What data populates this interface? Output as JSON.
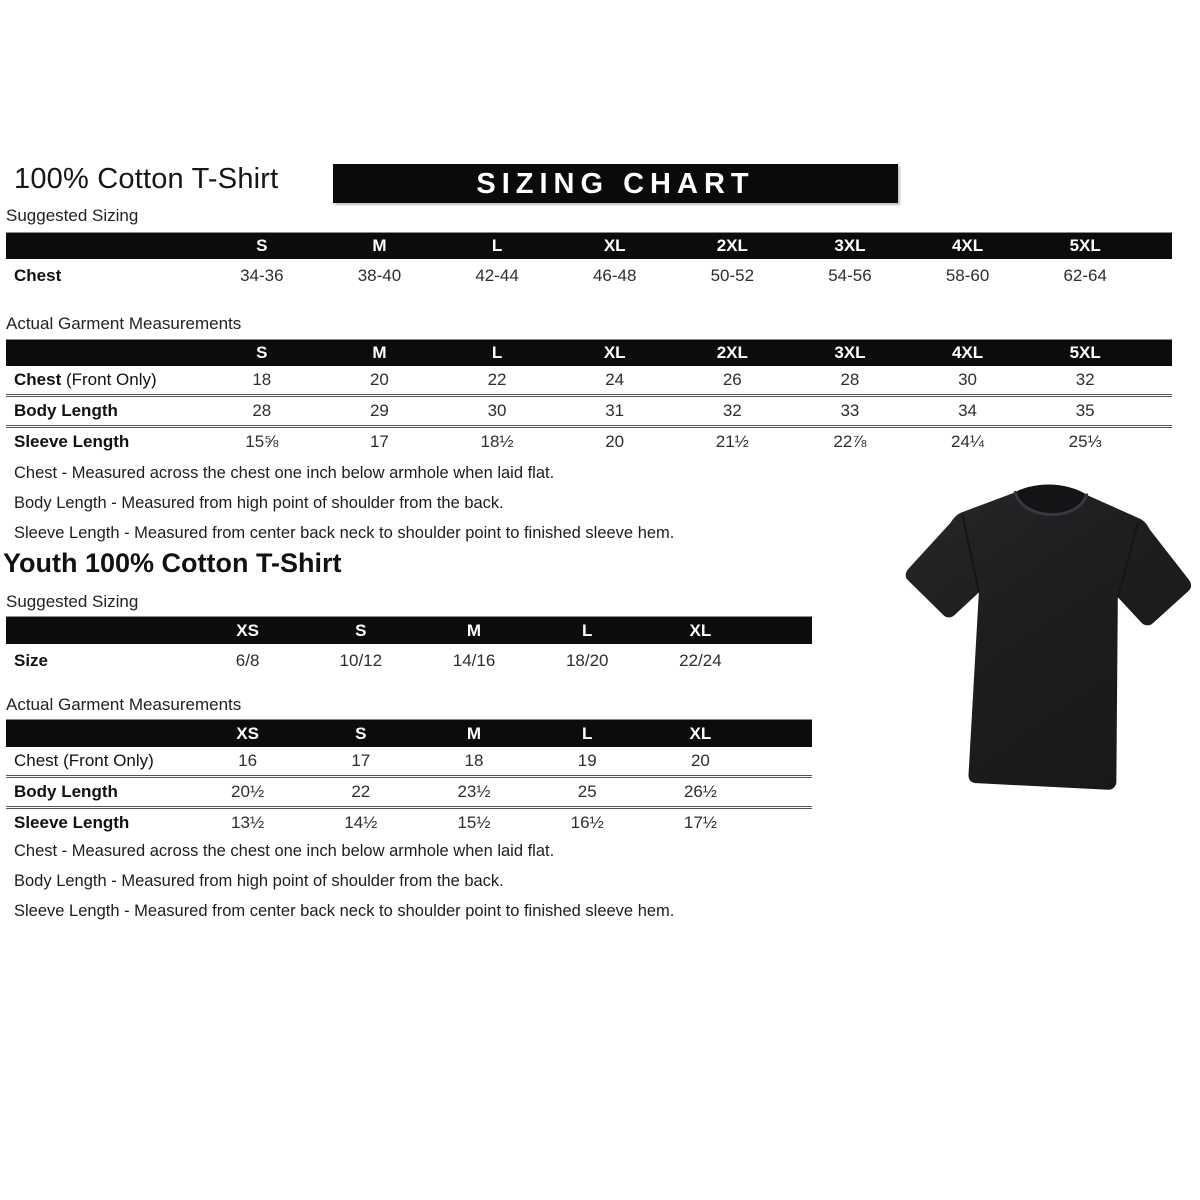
{
  "header": {
    "title": "100% Cotton T-Shirt",
    "banner": "SIZING CHART"
  },
  "labels": {
    "suggested": "Suggested Sizing",
    "actual": "Actual Garment Measurements"
  },
  "adult": {
    "suggested": {
      "columns": [
        "S",
        "M",
        "L",
        "XL",
        "2XL",
        "3XL",
        "4XL",
        "5XL"
      ],
      "rows": [
        {
          "label": "Chest",
          "suffix": "",
          "values": [
            "34-36",
            "38-40",
            "42-44",
            "46-48",
            "50-52",
            "54-56",
            "58-60",
            "62-64"
          ]
        }
      ]
    },
    "measurements": {
      "columns": [
        "S",
        "M",
        "L",
        "XL",
        "2XL",
        "3XL",
        "4XL",
        "5XL"
      ],
      "rows": [
        {
          "label": "Chest",
          "suffix": " (Front Only)",
          "values": [
            "18",
            "20",
            "22",
            "24",
            "26",
            "28",
            "30",
            "32"
          ]
        },
        {
          "label": "Body Length",
          "suffix": "",
          "values": [
            "28",
            "29",
            "30",
            "31",
            "32",
            "33",
            "34",
            "35"
          ]
        },
        {
          "label": "Sleeve Length",
          "suffix": "",
          "values": [
            "15⅝",
            "17",
            "18½",
            "20",
            "21½",
            "22⅞",
            "24¼",
            "25⅓"
          ]
        }
      ]
    },
    "notes": [
      "Chest - Measured across the chest one inch below armhole when laid flat.",
      "Body Length - Measured from high point of shoulder from the back.",
      "Sleeve Length - Measured from center back neck to shoulder point to finished sleeve hem."
    ]
  },
  "youth": {
    "title": "Youth 100% Cotton T-Shirt",
    "suggested": {
      "columns": [
        "XS",
        "S",
        "M",
        "L",
        "XL"
      ],
      "rows": [
        {
          "label": "Size",
          "suffix": "",
          "values": [
            "6/8",
            "10/12",
            "14/16",
            "18/20",
            "22/24"
          ]
        }
      ]
    },
    "measurements": {
      "columns": [
        "XS",
        "S",
        "M",
        "L",
        "XL"
      ],
      "rows": [
        {
          "label": "Chest",
          "suffix": " (Front Only)",
          "bold": false,
          "values": [
            "16",
            "17",
            "18",
            "19",
            "20"
          ]
        },
        {
          "label": "Body Length",
          "suffix": "",
          "values": [
            "20½",
            "22",
            "23½",
            "25",
            "26½"
          ]
        },
        {
          "label": "Sleeve Length",
          "suffix": "",
          "values": [
            "13½",
            "14½",
            "15½",
            "16½",
            "17½"
          ]
        }
      ]
    },
    "notes": [
      "Chest - Measured across the chest one inch below armhole when laid flat.",
      "Body Length - Measured from high point of shoulder from the back.",
      "Sleeve Length - Measured from center back neck to shoulder point to finished sleeve hem."
    ]
  },
  "tshirt": {
    "description": "black short-sleeve crew neck t-shirt",
    "body_color": "#1e1e20",
    "collar_color": "#141416",
    "highlight_color": "#39393d"
  }
}
